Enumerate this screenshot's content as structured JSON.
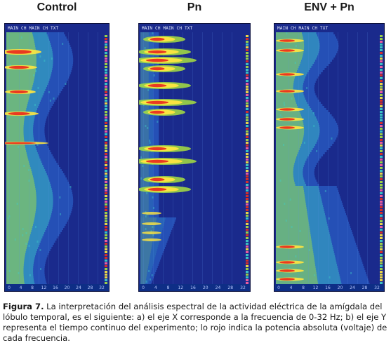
{
  "panels": [
    {
      "title": "Control",
      "header": "MAIN CH   MAIN CH TXT",
      "x_ticks": [
        "0",
        "4",
        "8",
        "12",
        "16",
        "20",
        "24",
        "28",
        "32"
      ]
    },
    {
      "title": "Pn",
      "header": "MAIN CH   MAIN CH TXT",
      "x_ticks": [
        "0",
        "4",
        "8",
        "12",
        "16",
        "20",
        "24",
        "28",
        "32"
      ]
    },
    {
      "title": "ENV + Pn",
      "header": "MAIN CH   MAIN CH TXT",
      "x_ticks": [
        "0",
        "4",
        "8",
        "12",
        "16",
        "20",
        "24",
        "28",
        "32"
      ]
    }
  ],
  "caption": {
    "label": "Figura 7.",
    "text": " La interpretación del análisis espectral de la actividad eléctrica de la amígdala del lóbulo temporal, es el siguiente: a) el eje X corresponde a la frecuencia de 0-32 Hz; b) el eje Y representa el tiempo continuo del experimento; lo rojo indica la potencia absoluta (voltaje) de cada frecuencia."
  },
  "colors": {
    "background": "#1a2a8c",
    "low": "#2f6fd8",
    "mid": "#3fd0c8",
    "high": "#a8e040",
    "peak": "#e83020",
    "hot": "#ffe640"
  }
}
